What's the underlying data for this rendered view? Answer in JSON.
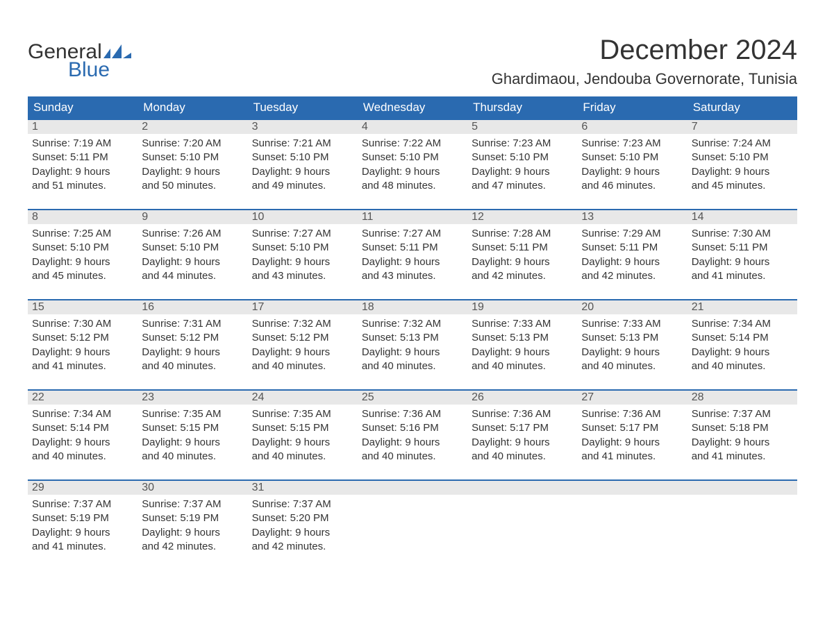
{
  "brand": {
    "part1": "General",
    "part2": "Blue",
    "flag_color": "#2a6ab0"
  },
  "title": "December 2024",
  "location": "Ghardimaou, Jendouba Governorate, Tunisia",
  "colors": {
    "header_bg": "#2a6ab0",
    "header_text": "#ffffff",
    "daynum_bg": "#e8e8e8",
    "body_text": "#333333",
    "rule": "#2a6ab0"
  },
  "typography": {
    "title_fontsize": 40,
    "location_fontsize": 22,
    "dayhead_fontsize": 17,
    "cell_fontsize": 15
  },
  "day_headers": [
    "Sunday",
    "Monday",
    "Tuesday",
    "Wednesday",
    "Thursday",
    "Friday",
    "Saturday"
  ],
  "weeks": [
    [
      {
        "n": "1",
        "sunrise": "Sunrise: 7:19 AM",
        "sunset": "Sunset: 5:11 PM",
        "dl1": "Daylight: 9 hours",
        "dl2": "and 51 minutes."
      },
      {
        "n": "2",
        "sunrise": "Sunrise: 7:20 AM",
        "sunset": "Sunset: 5:10 PM",
        "dl1": "Daylight: 9 hours",
        "dl2": "and 50 minutes."
      },
      {
        "n": "3",
        "sunrise": "Sunrise: 7:21 AM",
        "sunset": "Sunset: 5:10 PM",
        "dl1": "Daylight: 9 hours",
        "dl2": "and 49 minutes."
      },
      {
        "n": "4",
        "sunrise": "Sunrise: 7:22 AM",
        "sunset": "Sunset: 5:10 PM",
        "dl1": "Daylight: 9 hours",
        "dl2": "and 48 minutes."
      },
      {
        "n": "5",
        "sunrise": "Sunrise: 7:23 AM",
        "sunset": "Sunset: 5:10 PM",
        "dl1": "Daylight: 9 hours",
        "dl2": "and 47 minutes."
      },
      {
        "n": "6",
        "sunrise": "Sunrise: 7:23 AM",
        "sunset": "Sunset: 5:10 PM",
        "dl1": "Daylight: 9 hours",
        "dl2": "and 46 minutes."
      },
      {
        "n": "7",
        "sunrise": "Sunrise: 7:24 AM",
        "sunset": "Sunset: 5:10 PM",
        "dl1": "Daylight: 9 hours",
        "dl2": "and 45 minutes."
      }
    ],
    [
      {
        "n": "8",
        "sunrise": "Sunrise: 7:25 AM",
        "sunset": "Sunset: 5:10 PM",
        "dl1": "Daylight: 9 hours",
        "dl2": "and 45 minutes."
      },
      {
        "n": "9",
        "sunrise": "Sunrise: 7:26 AM",
        "sunset": "Sunset: 5:10 PM",
        "dl1": "Daylight: 9 hours",
        "dl2": "and 44 minutes."
      },
      {
        "n": "10",
        "sunrise": "Sunrise: 7:27 AM",
        "sunset": "Sunset: 5:10 PM",
        "dl1": "Daylight: 9 hours",
        "dl2": "and 43 minutes."
      },
      {
        "n": "11",
        "sunrise": "Sunrise: 7:27 AM",
        "sunset": "Sunset: 5:11 PM",
        "dl1": "Daylight: 9 hours",
        "dl2": "and 43 minutes."
      },
      {
        "n": "12",
        "sunrise": "Sunrise: 7:28 AM",
        "sunset": "Sunset: 5:11 PM",
        "dl1": "Daylight: 9 hours",
        "dl2": "and 42 minutes."
      },
      {
        "n": "13",
        "sunrise": "Sunrise: 7:29 AM",
        "sunset": "Sunset: 5:11 PM",
        "dl1": "Daylight: 9 hours",
        "dl2": "and 42 minutes."
      },
      {
        "n": "14",
        "sunrise": "Sunrise: 7:30 AM",
        "sunset": "Sunset: 5:11 PM",
        "dl1": "Daylight: 9 hours",
        "dl2": "and 41 minutes."
      }
    ],
    [
      {
        "n": "15",
        "sunrise": "Sunrise: 7:30 AM",
        "sunset": "Sunset: 5:12 PM",
        "dl1": "Daylight: 9 hours",
        "dl2": "and 41 minutes."
      },
      {
        "n": "16",
        "sunrise": "Sunrise: 7:31 AM",
        "sunset": "Sunset: 5:12 PM",
        "dl1": "Daylight: 9 hours",
        "dl2": "and 40 minutes."
      },
      {
        "n": "17",
        "sunrise": "Sunrise: 7:32 AM",
        "sunset": "Sunset: 5:12 PM",
        "dl1": "Daylight: 9 hours",
        "dl2": "and 40 minutes."
      },
      {
        "n": "18",
        "sunrise": "Sunrise: 7:32 AM",
        "sunset": "Sunset: 5:13 PM",
        "dl1": "Daylight: 9 hours",
        "dl2": "and 40 minutes."
      },
      {
        "n": "19",
        "sunrise": "Sunrise: 7:33 AM",
        "sunset": "Sunset: 5:13 PM",
        "dl1": "Daylight: 9 hours",
        "dl2": "and 40 minutes."
      },
      {
        "n": "20",
        "sunrise": "Sunrise: 7:33 AM",
        "sunset": "Sunset: 5:13 PM",
        "dl1": "Daylight: 9 hours",
        "dl2": "and 40 minutes."
      },
      {
        "n": "21",
        "sunrise": "Sunrise: 7:34 AM",
        "sunset": "Sunset: 5:14 PM",
        "dl1": "Daylight: 9 hours",
        "dl2": "and 40 minutes."
      }
    ],
    [
      {
        "n": "22",
        "sunrise": "Sunrise: 7:34 AM",
        "sunset": "Sunset: 5:14 PM",
        "dl1": "Daylight: 9 hours",
        "dl2": "and 40 minutes."
      },
      {
        "n": "23",
        "sunrise": "Sunrise: 7:35 AM",
        "sunset": "Sunset: 5:15 PM",
        "dl1": "Daylight: 9 hours",
        "dl2": "and 40 minutes."
      },
      {
        "n": "24",
        "sunrise": "Sunrise: 7:35 AM",
        "sunset": "Sunset: 5:15 PM",
        "dl1": "Daylight: 9 hours",
        "dl2": "and 40 minutes."
      },
      {
        "n": "25",
        "sunrise": "Sunrise: 7:36 AM",
        "sunset": "Sunset: 5:16 PM",
        "dl1": "Daylight: 9 hours",
        "dl2": "and 40 minutes."
      },
      {
        "n": "26",
        "sunrise": "Sunrise: 7:36 AM",
        "sunset": "Sunset: 5:17 PM",
        "dl1": "Daylight: 9 hours",
        "dl2": "and 40 minutes."
      },
      {
        "n": "27",
        "sunrise": "Sunrise: 7:36 AM",
        "sunset": "Sunset: 5:17 PM",
        "dl1": "Daylight: 9 hours",
        "dl2": "and 41 minutes."
      },
      {
        "n": "28",
        "sunrise": "Sunrise: 7:37 AM",
        "sunset": "Sunset: 5:18 PM",
        "dl1": "Daylight: 9 hours",
        "dl2": "and 41 minutes."
      }
    ],
    [
      {
        "n": "29",
        "sunrise": "Sunrise: 7:37 AM",
        "sunset": "Sunset: 5:19 PM",
        "dl1": "Daylight: 9 hours",
        "dl2": "and 41 minutes."
      },
      {
        "n": "30",
        "sunrise": "Sunrise: 7:37 AM",
        "sunset": "Sunset: 5:19 PM",
        "dl1": "Daylight: 9 hours",
        "dl2": "and 42 minutes."
      },
      {
        "n": "31",
        "sunrise": "Sunrise: 7:37 AM",
        "sunset": "Sunset: 5:20 PM",
        "dl1": "Daylight: 9 hours",
        "dl2": "and 42 minutes."
      },
      {
        "n": "",
        "sunrise": "",
        "sunset": "",
        "dl1": "",
        "dl2": ""
      },
      {
        "n": "",
        "sunrise": "",
        "sunset": "",
        "dl1": "",
        "dl2": ""
      },
      {
        "n": "",
        "sunrise": "",
        "sunset": "",
        "dl1": "",
        "dl2": ""
      },
      {
        "n": "",
        "sunrise": "",
        "sunset": "",
        "dl1": "",
        "dl2": ""
      }
    ]
  ]
}
